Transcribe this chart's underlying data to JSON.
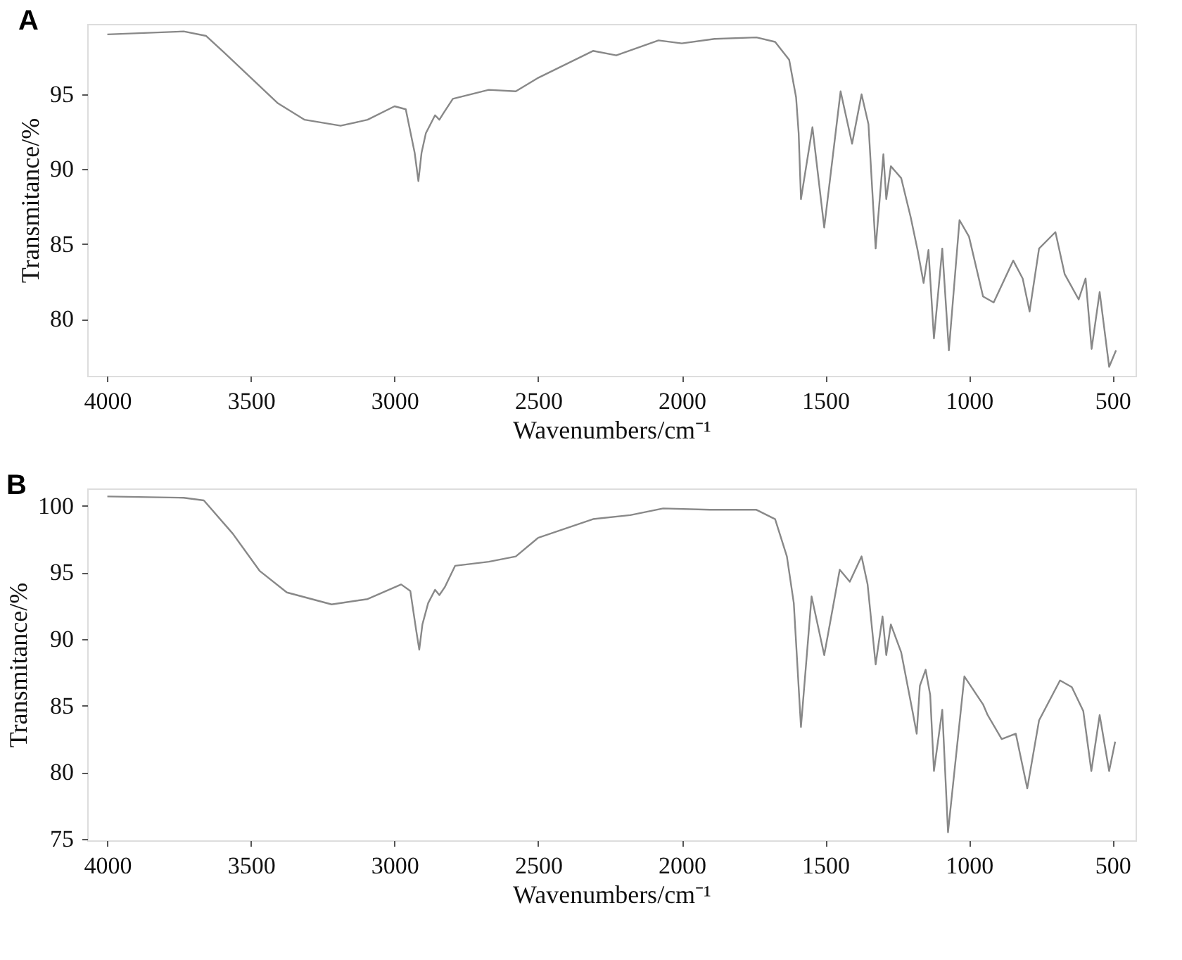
{
  "chart_data": [
    {
      "type": "line",
      "title": "A",
      "xlabel": "Wavenumbers/cm⁻¹",
      "ylabel": "Transmitance/%",
      "xlim": [
        4070,
        420
      ],
      "xticks": [
        4000,
        3500,
        3000,
        2500,
        2000,
        1500,
        1000,
        500
      ],
      "ylim": [
        76.2,
        99.7
      ],
      "yticks": [
        80,
        85,
        90,
        95
      ],
      "grid": false,
      "series": [
        {
          "color": "#888888",
          "x": [
            4000,
            3734,
            3656,
            3594,
            3500,
            3406,
            3313,
            3188,
            3094,
            3000,
            2961,
            2930,
            2917,
            2906,
            2891,
            2859,
            2844,
            2831,
            2797,
            2672,
            2578,
            2500,
            2309,
            2228,
            2081,
            2000,
            1886,
            1740,
            1675,
            1626,
            1602,
            1593,
            1585,
            1545,
            1504,
            1447,
            1407,
            1374,
            1350,
            1325,
            1298,
            1288,
            1272,
            1236,
            1203,
            1179,
            1158,
            1141,
            1122,
            1093,
            1070,
            1033,
            1000,
            951,
            914,
            846,
            813,
            789,
            756,
            699,
            667,
            618,
            594,
            573,
            545,
            512,
            488
          ],
          "values": [
            99.0,
            99.2,
            98.9,
            97.8,
            96.1,
            94.4,
            93.3,
            92.9,
            93.3,
            94.2,
            94.0,
            91.1,
            89.2,
            91.1,
            92.4,
            93.6,
            93.3,
            93.7,
            94.7,
            95.3,
            95.2,
            96.1,
            97.9,
            97.6,
            98.6,
            98.4,
            98.7,
            98.8,
            98.5,
            97.3,
            94.8,
            92.4,
            88.0,
            92.8,
            86.1,
            95.2,
            91.7,
            95.0,
            93.0,
            84.7,
            91.0,
            88.0,
            90.2,
            89.4,
            86.8,
            84.6,
            82.4,
            84.6,
            78.7,
            84.7,
            77.9,
            86.6,
            85.5,
            81.5,
            81.1,
            83.9,
            82.7,
            80.5,
            84.7,
            85.8,
            83.0,
            81.3,
            82.7,
            78.0,
            81.8,
            76.8,
            77.9
          ]
        }
      ]
    },
    {
      "type": "line",
      "title": "B",
      "xlabel": "Wavenumbers/cm⁻¹",
      "ylabel": "Transmitance/%",
      "xlim": [
        4070,
        420
      ],
      "xticks": [
        4000,
        3500,
        3000,
        2500,
        2000,
        1500,
        1000,
        500
      ],
      "ylim": [
        74.9,
        101.3
      ],
      "yticks": [
        75,
        80,
        85,
        90,
        95,
        100
      ],
      "grid": false,
      "series": [
        {
          "color": "#888888",
          "x": [
            4000,
            3734,
            3664,
            3563,
            3469,
            3375,
            3219,
            3094,
            2977,
            2945,
            2925,
            2914,
            2903,
            2883,
            2859,
            2844,
            2825,
            2789,
            2672,
            2578,
            2500,
            2309,
            2179,
            2065,
            1902,
            1740,
            1675,
            1634,
            1610,
            1585,
            1548,
            1504,
            1450,
            1415,
            1374,
            1353,
            1325,
            1301,
            1288,
            1272,
            1236,
            1195,
            1182,
            1171,
            1151,
            1135,
            1122,
            1093,
            1073,
            1016,
            951,
            935,
            886,
            837,
            797,
            756,
            683,
            642,
            602,
            574,
            545,
            512,
            491
          ],
          "values": [
            100.7,
            100.6,
            100.4,
            97.9,
            95.1,
            93.5,
            92.6,
            93.0,
            94.1,
            93.6,
            90.7,
            89.2,
            91.1,
            92.7,
            93.7,
            93.3,
            93.9,
            95.5,
            95.8,
            96.2,
            97.6,
            99.0,
            99.3,
            99.8,
            99.7,
            99.7,
            99.0,
            96.2,
            92.7,
            83.4,
            93.2,
            88.8,
            95.2,
            94.3,
            96.2,
            94.1,
            88.1,
            91.7,
            88.8,
            91.1,
            89.0,
            84.4,
            82.9,
            86.5,
            87.7,
            85.8,
            80.1,
            84.7,
            75.5,
            87.2,
            85.1,
            84.3,
            82.5,
            82.9,
            78.8,
            83.9,
            86.9,
            86.4,
            84.6,
            80.1,
            84.3,
            80.1,
            82.3
          ]
        }
      ]
    }
  ]
}
